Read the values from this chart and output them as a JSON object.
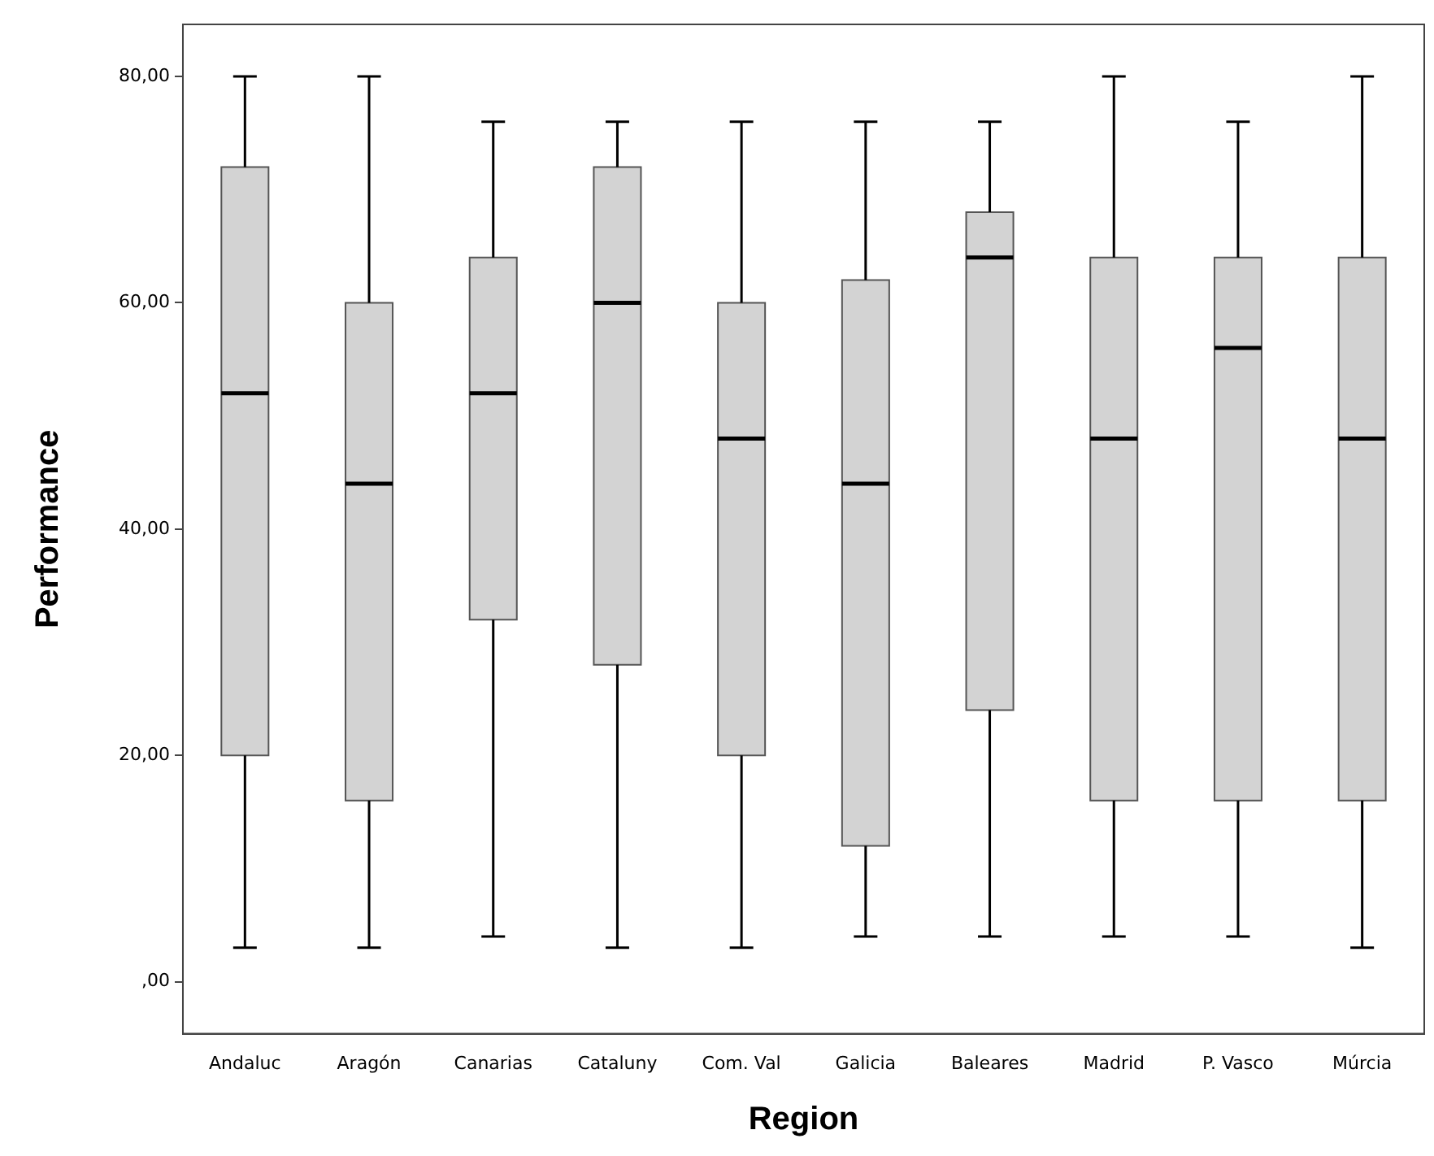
{
  "chart_data": {
    "type": "box",
    "xlabel": "Region",
    "ylabel": "Performance",
    "categories": [
      "Andaluc",
      "Aragón",
      "Canarias",
      "Cataluny",
      "Com. Val",
      "Galicia",
      "Baleares",
      "Madrid",
      "P. Vasco",
      "Múrcia"
    ],
    "boxes": [
      {
        "low": 3,
        "q1": 20,
        "median": 52,
        "q3": 72,
        "high": 80
      },
      {
        "low": 3,
        "q1": 16,
        "median": 44,
        "q3": 60,
        "high": 80
      },
      {
        "low": 4,
        "q1": 32,
        "median": 52,
        "q3": 64,
        "high": 76
      },
      {
        "low": 3,
        "q1": 28,
        "median": 60,
        "q3": 72,
        "high": 76
      },
      {
        "low": 3,
        "q1": 20,
        "median": 48,
        "q3": 60,
        "high": 76
      },
      {
        "low": 4,
        "q1": 12,
        "median": 44,
        "q3": 62,
        "high": 76
      },
      {
        "low": 4,
        "q1": 24,
        "median": 64,
        "q3": 68,
        "high": 76
      },
      {
        "low": 4,
        "q1": 16,
        "median": 48,
        "q3": 64,
        "high": 80
      },
      {
        "low": 4,
        "q1": 16,
        "median": 56,
        "q3": 64,
        "high": 76
      },
      {
        "low": 3,
        "q1": 16,
        "median": 48,
        "q3": 64,
        "high": 80
      }
    ],
    "color": "#d3d3d3",
    "ylim": [
      -4.6,
      84.6
    ],
    "yticks": [
      {
        "value": 0,
        "label": ",00"
      },
      {
        "value": 20,
        "label": "20,00"
      },
      {
        "value": 40,
        "label": "40,00"
      },
      {
        "value": 60,
        "label": "60,00"
      },
      {
        "value": 80,
        "label": "80,00"
      }
    ],
    "grid": false,
    "legend": false
  }
}
